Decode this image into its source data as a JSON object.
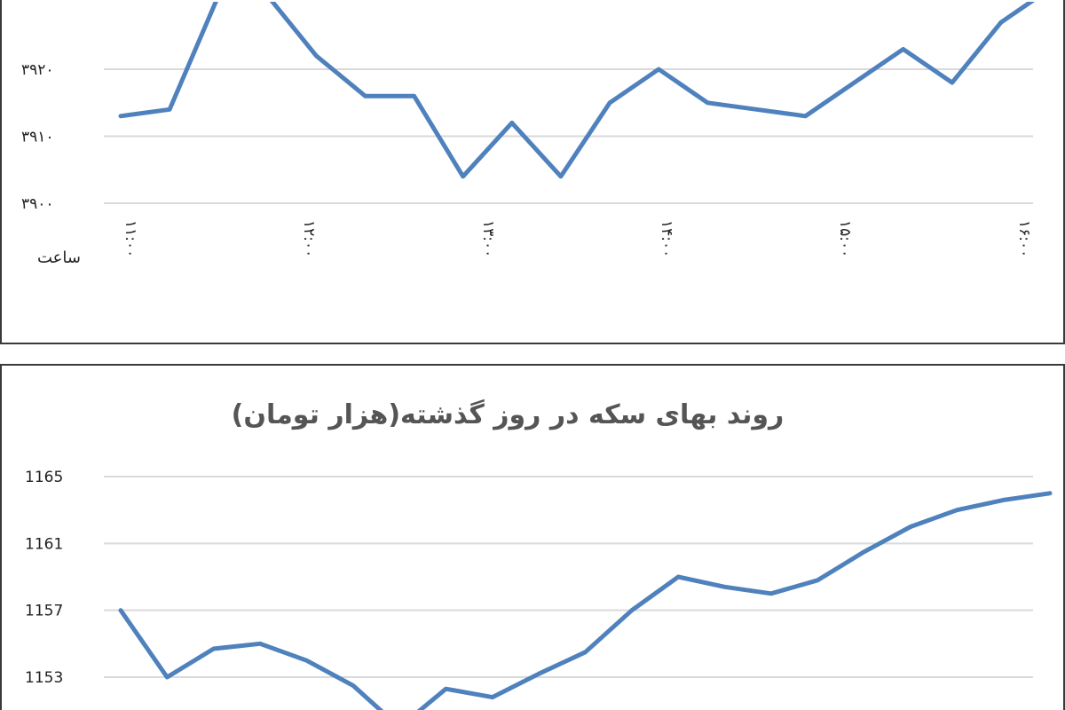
{
  "chart_data": [
    {
      "type": "line",
      "title": "",
      "xlabel": "ساعت",
      "ylabel": "",
      "y_ticks": [
        "۳۹۰۰",
        "۳۹۱۰",
        "۳۹۲۰"
      ],
      "ylim": [
        3900,
        3930
      ],
      "x_tick_labels": [
        "۱۱:۰۰",
        "۱۲:۰۰",
        "۱۳:۰۰",
        "۱۴:۰۰",
        "۱۵:۰۰",
        "۱۶:۰۰"
      ],
      "grid": true,
      "legend": "none",
      "series": [
        {
          "color": "#4f81bd",
          "values": [
            3913,
            3914,
            3931,
            3931,
            3922,
            3916,
            3916,
            3904,
            3912,
            3904,
            3915,
            3920,
            3915,
            3914,
            3913,
            3918,
            3923,
            3918,
            3927,
            3932
          ]
        }
      ]
    },
    {
      "type": "line",
      "title": "روند بهای سکه در روز گذشته(هزار تومان)",
      "xlabel": "",
      "ylabel": "",
      "y_ticks": [
        "1153",
        "1157",
        "1161",
        "1165"
      ],
      "ylim": [
        1150,
        1165
      ],
      "grid": true,
      "legend": "none",
      "series": [
        {
          "color": "#4f81bd",
          "values": [
            1157.0,
            1153.0,
            1154.7,
            1155.0,
            1154.0,
            1152.5,
            1150.0,
            1152.3,
            1151.8,
            1153.2,
            1154.5,
            1157.0,
            1159.0,
            1158.4,
            1158.0,
            1158.8,
            1160.5,
            1162.0,
            1163.0,
            1163.6,
            1164.0
          ]
        }
      ]
    }
  ]
}
